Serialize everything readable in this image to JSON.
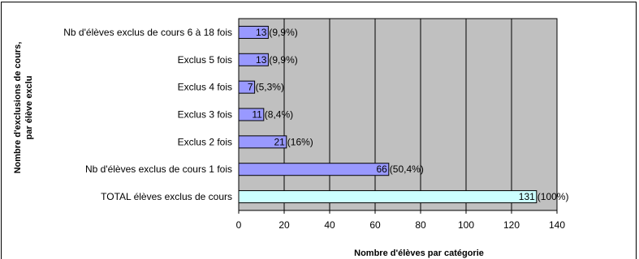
{
  "chart_data": {
    "type": "bar",
    "orientation": "horizontal",
    "categories": [
      "Nb d'élèves exclus de cours 6 à 18 fois",
      "Exclus 5 fois",
      "Exclus 4 fois",
      "Exclus 3 fois",
      "Exclus 2 fois",
      "Nb d'élèves exclus de cours 1 fois",
      "TOTAL élèves exclus de cours"
    ],
    "values": [
      13,
      13,
      7,
      11,
      21,
      66,
      131
    ],
    "value_labels": [
      "13(9,9%)",
      "13(9,9%)",
      "7(5,3%)",
      "11(8,4%)",
      "21(16%)",
      "66(50,4%)",
      "131 (100%)"
    ],
    "bar_colors": [
      "#9999ff",
      "#9999ff",
      "#9999ff",
      "#9999ff",
      "#9999ff",
      "#9999ff",
      "#ccffff"
    ],
    "plot_background": "#c0c0c0",
    "xlabel": "Nombre d'élèves par catégorie",
    "ylabel_line1": "Nombre d'exclusions de cours,",
    "ylabel_line2": "par élève exclu",
    "xlim": [
      0,
      140
    ],
    "xticks": [
      0,
      20,
      40,
      60,
      80,
      100,
      120,
      140
    ],
    "grid": true
  }
}
